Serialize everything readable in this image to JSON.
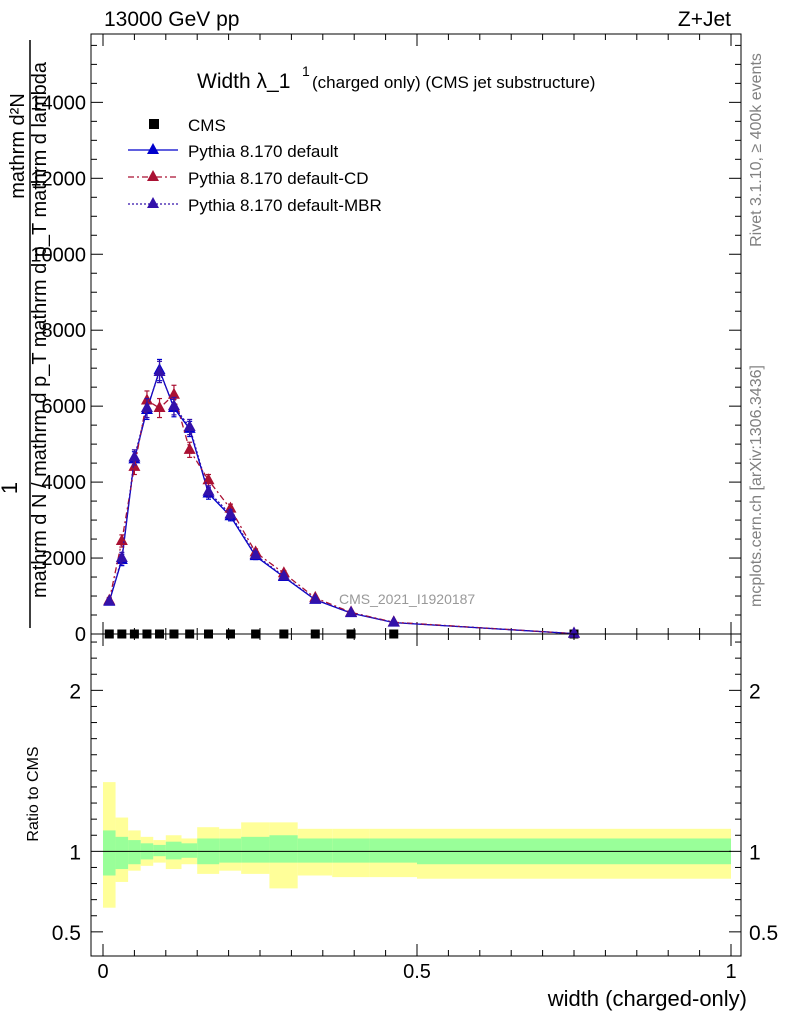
{
  "header": {
    "left": "13000 GeV pp",
    "right": "Z+Jet"
  },
  "side_labels": {
    "rivet": "Rivet 3.1.10, ≥ 400k events",
    "mcplots": "mcplots.cern.ch [arXiv:1306.3436]"
  },
  "watermark": "CMS_2021_I1920187",
  "chart_data": [
    {
      "type": "line",
      "title": "Width λ_1",
      "title_sup": "1",
      "title_suffix": "(charged only) (CMS jet substructure)",
      "ylabel_lines": [
        "mathrm d²N",
        "1",
        "mathrm d N / mathrm d p_T mathrm d p_T mathrm d lambda"
      ],
      "xlim": [
        0,
        1
      ],
      "ylim": [
        0,
        15800
      ],
      "yticks": [
        0,
        2000,
        4000,
        6000,
        8000,
        10000,
        12000,
        14000
      ],
      "yticklabels": [
        "0",
        "2000",
        "4000",
        "6000",
        "8000",
        "10000",
        "12000",
        "14000"
      ],
      "legend_position": "top-left",
      "series": [
        {
          "name": "CMS",
          "marker": "square",
          "color": "#000000",
          "x": [
            0.01,
            0.03,
            0.05,
            0.07,
            0.09,
            0.113,
            0.138,
            0.168,
            0.203,
            0.243,
            0.288,
            0.338,
            0.395,
            0.463,
            0.75
          ],
          "y": [
            0,
            0,
            0,
            0,
            0,
            0,
            0,
            0,
            0,
            0,
            0,
            0,
            0,
            0,
            0
          ]
        },
        {
          "name": "Pythia 8.170 default",
          "marker": "triangle",
          "line": "solid",
          "color": "#0000cc",
          "x": [
            0.01,
            0.03,
            0.05,
            0.07,
            0.09,
            0.113,
            0.138,
            0.168,
            0.203,
            0.243,
            0.288,
            0.338,
            0.395,
            0.463,
            0.75
          ],
          "y": [
            850,
            1950,
            4600,
            5900,
            6950,
            5950,
            5400,
            3700,
            3100,
            2050,
            1500,
            900,
            550,
            300,
            10
          ],
          "err": [
            80,
            150,
            200,
            250,
            280,
            230,
            200,
            150,
            120,
            90,
            70,
            50,
            40,
            30,
            5
          ]
        },
        {
          "name": "Pythia 8.170 default-CD",
          "marker": "triangle",
          "line": "dashdot",
          "color": "#aa1133",
          "x": [
            0.01,
            0.03,
            0.05,
            0.07,
            0.09,
            0.113,
            0.138,
            0.168,
            0.203,
            0.243,
            0.288,
            0.338,
            0.395,
            0.463,
            0.75
          ],
          "y": [
            880,
            2450,
            4400,
            6150,
            5950,
            6300,
            4850,
            4050,
            3300,
            2150,
            1600,
            950,
            570,
            310,
            10
          ],
          "err": [
            80,
            160,
            200,
            250,
            250,
            250,
            200,
            150,
            120,
            90,
            70,
            50,
            40,
            30,
            5
          ]
        },
        {
          "name": "Pythia 8.170 default-MBR",
          "marker": "triangle",
          "line": "dotted",
          "color": "#3311aa",
          "x": [
            0.01,
            0.03,
            0.05,
            0.07,
            0.09,
            0.113,
            0.138,
            0.168,
            0.203,
            0.243,
            0.288,
            0.338,
            0.395,
            0.463,
            0.75
          ],
          "y": [
            860,
            2000,
            4650,
            5950,
            6900,
            6000,
            5450,
            3750,
            3150,
            2080,
            1520,
            910,
            555,
            302,
            10
          ],
          "err": [
            80,
            150,
            200,
            250,
            280,
            230,
            200,
            150,
            120,
            90,
            70,
            50,
            40,
            30,
            5
          ]
        }
      ]
    },
    {
      "type": "area",
      "ylabel": "Ratio to CMS",
      "xlabel": "width (charged-only)",
      "xlim": [
        0,
        1
      ],
      "ylim": [
        0.35,
        2.35
      ],
      "xticks": [
        0,
        0.5,
        1
      ],
      "xticklabels": [
        "0",
        "0.5",
        "1"
      ],
      "yticks": [
        0.5,
        1,
        2
      ],
      "yticklabels": [
        "0.5",
        "1",
        "2"
      ],
      "reference_line": 1,
      "bin_edges": [
        0,
        0.02,
        0.04,
        0.06,
        0.08,
        0.1,
        0.125,
        0.15,
        0.185,
        0.22,
        0.265,
        0.31,
        0.365,
        0.425,
        0.5,
        1.0
      ],
      "band_inner": {
        "color": "#99ff99",
        "lower": [
          0.85,
          0.89,
          0.92,
          0.95,
          0.97,
          0.95,
          0.96,
          0.92,
          0.93,
          0.93,
          0.93,
          0.93,
          0.93,
          0.93,
          0.92
        ],
        "upper": [
          1.13,
          1.09,
          1.07,
          1.05,
          1.04,
          1.06,
          1.05,
          1.08,
          1.08,
          1.09,
          1.1,
          1.08,
          1.08,
          1.08,
          1.08
        ]
      },
      "band_outer": {
        "color": "#ffff99",
        "lower": [
          0.65,
          0.81,
          0.88,
          0.91,
          0.93,
          0.89,
          0.92,
          0.86,
          0.88,
          0.86,
          0.77,
          0.85,
          0.84,
          0.84,
          0.83
        ],
        "upper": [
          1.43,
          1.21,
          1.13,
          1.09,
          1.07,
          1.1,
          1.08,
          1.15,
          1.14,
          1.18,
          1.18,
          1.14,
          1.14,
          1.14,
          1.14
        ]
      }
    }
  ]
}
